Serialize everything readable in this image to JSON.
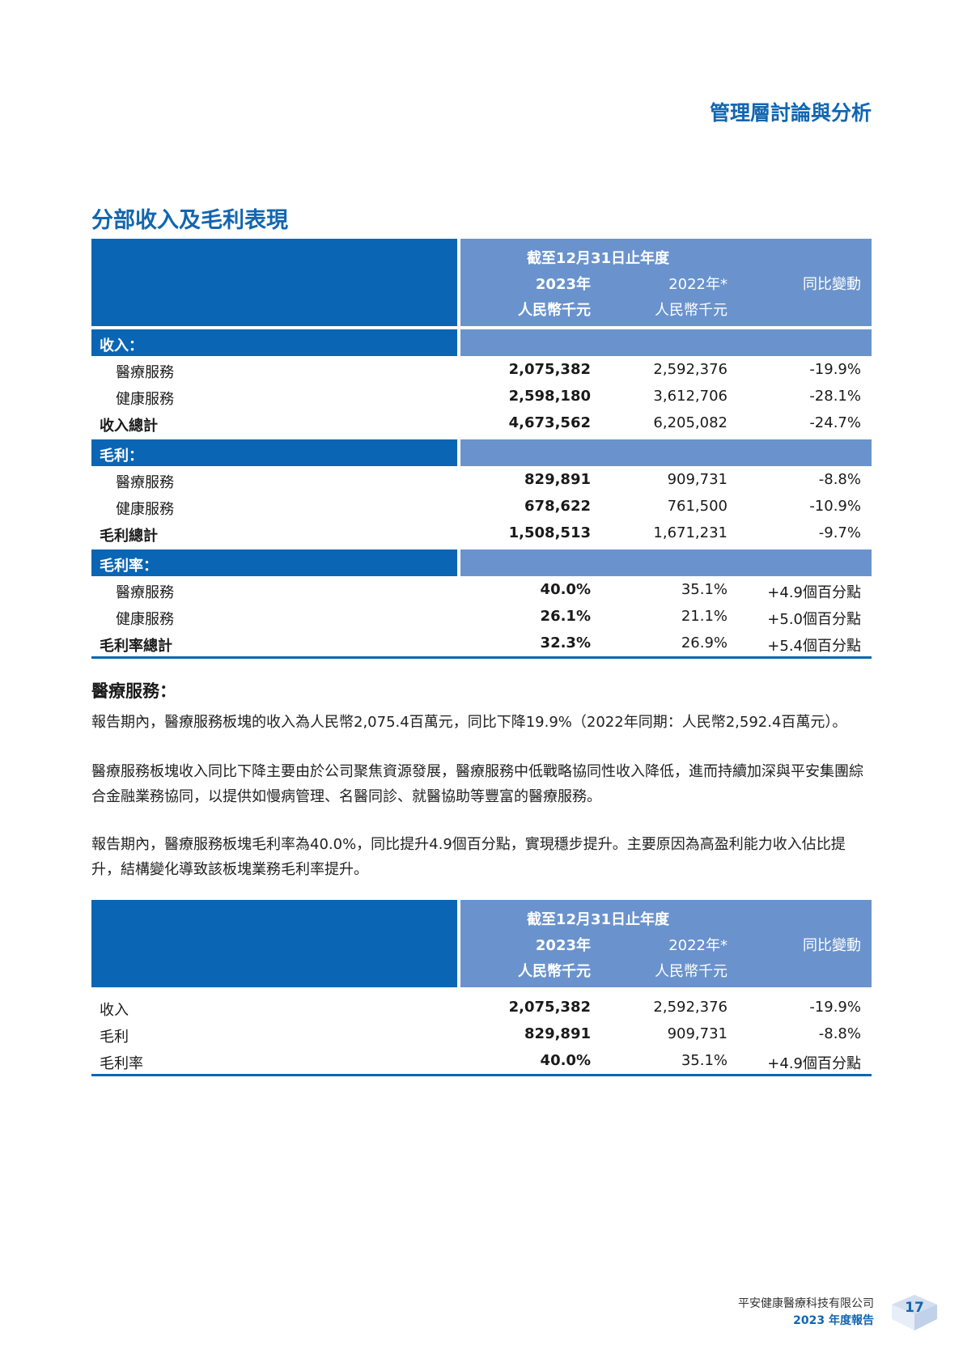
{
  "header": {
    "title": "管理層討論與分析"
  },
  "section_title": "分部收入及毛利表現",
  "table_header": {
    "period": "截至12月31日止年度",
    "col1_year": "2023年",
    "col1_unit": "人民幣千元",
    "col2_year": "2022年*",
    "col2_unit": "人民幣千元",
    "col3": "同比變動"
  },
  "table1": {
    "bands": {
      "revenue": "收入：",
      "gross_profit": "毛利：",
      "gross_margin": "毛利率："
    },
    "revenue_rows": [
      {
        "label": "醫療服務",
        "v2023": "2,075,382",
        "v2022": "2,592,376",
        "change": "-19.9%"
      },
      {
        "label": "健康服務",
        "v2023": "2,598,180",
        "v2022": "3,612,706",
        "change": "-28.1%"
      }
    ],
    "revenue_total": {
      "label": "收入總計",
      "v2023": "4,673,562",
      "v2022": "6,205,082",
      "change": "-24.7%"
    },
    "gp_rows": [
      {
        "label": "醫療服務",
        "v2023": "829,891",
        "v2022": "909,731",
        "change": "-8.8%"
      },
      {
        "label": "健康服務",
        "v2023": "678,622",
        "v2022": "761,500",
        "change": "-10.9%"
      }
    ],
    "gp_total": {
      "label": "毛利總計",
      "v2023": "1,508,513",
      "v2022": "1,671,231",
      "change": "-9.7%"
    },
    "gm_rows": [
      {
        "label": "醫療服務",
        "v2023": "40.0%",
        "v2022": "35.1%",
        "change": "+4.9個百分點"
      },
      {
        "label": "健康服務",
        "v2023": "26.1%",
        "v2022": "21.1%",
        "change": "+5.0個百分點"
      }
    ],
    "gm_total": {
      "label": "毛利率總計",
      "v2023": "32.3%",
      "v2022": "26.9%",
      "change": "+5.4個百分點"
    }
  },
  "medical_section": {
    "heading": "醫療服務：",
    "para1": "報告期內，醫療服務板塊的收入為人民幣2,075.4百萬元，同比下降19.9%（2022年同期：人民幣2,592.4百萬元）。",
    "para2": "醫療服務板塊收入同比下降主要由於公司聚焦資源發展，醫療服務中低戰略協同性收入降低，進而持續加深與平安集團綜合金融業務協同，以提供如慢病管理、名醫同診、就醫協助等豐富的醫療服務。",
    "para3": "報告期內，醫療服務板塊毛利率為40.0%，同比提升4.9個百分點，實現穩步提升。主要原因為高盈利能力收入佔比提升，結構變化導致該板塊業務毛利率提升。"
  },
  "table2": {
    "rows": [
      {
        "label": "收入",
        "v2023": "2,075,382",
        "v2022": "2,592,376",
        "change": "-19.9%"
      },
      {
        "label": "毛利",
        "v2023": "829,891",
        "v2022": "909,731",
        "change": "-8.8%"
      },
      {
        "label": "毛利率",
        "v2023": "40.0%",
        "v2022": "35.1%",
        "change": "+4.9個百分點"
      }
    ]
  },
  "footer": {
    "company": "平安健康醫療科技有限公司",
    "report": "2023 年度報告",
    "page_number": "17"
  }
}
